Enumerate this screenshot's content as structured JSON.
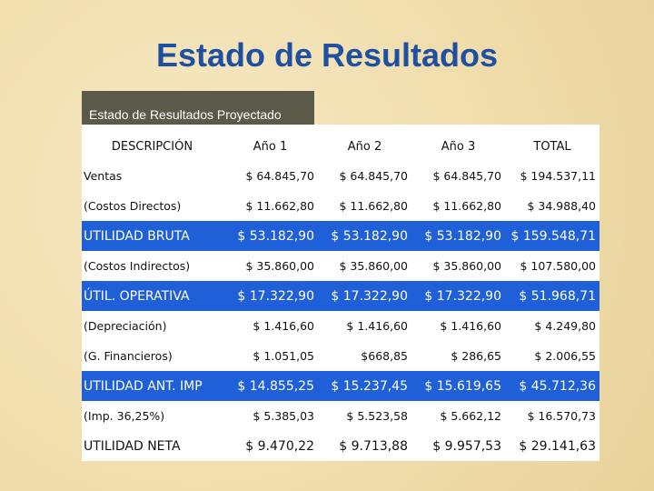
{
  "title": "Estado de Resultados",
  "table": {
    "caption": "Estado de Resultados Proyectado",
    "columns": [
      "DESCRIPCIÓN",
      "Año 1",
      "Año 2",
      "Año 3",
      "TOTAL"
    ],
    "rows": [
      {
        "cells": [
          "Ventas",
          "$ 64.845,70",
          "$ 64.845,70",
          "$ 64.845,70",
          "$ 194.537,11"
        ],
        "highlight": false
      },
      {
        "cells": [
          "(Costos Directos)",
          "$ 11.662,80",
          "$ 11.662,80",
          "$ 11.662,80",
          "$ 34.988,40"
        ],
        "highlight": false
      },
      {
        "cells": [
          "UTILIDAD BRUTA",
          "$ 53.182,90",
          "$ 53.182,90",
          "$ 53.182,90",
          "$ 159.548,71"
        ],
        "highlight": true
      },
      {
        "cells": [
          "(Costos Indirectos)",
          "$ 35.860,00",
          "$ 35.860,00",
          "$ 35.860,00",
          "$ 107.580,00"
        ],
        "highlight": false
      },
      {
        "cells": [
          "ÚTIL. OPERATIVA",
          "$ 17.322,90",
          "$ 17.322,90",
          "$ 17.322,90",
          "$ 51.968,71"
        ],
        "highlight": true
      },
      {
        "cells": [
          "(Depreciación)",
          "$ 1.416,60",
          "$ 1.416,60",
          "$ 1.416,60",
          "$ 4.249,80"
        ],
        "highlight": false
      },
      {
        "cells": [
          "(G. Financieros)",
          "$ 1.051,05",
          "$668,85",
          "$ 286,65",
          "$ 2.006,55"
        ],
        "highlight": false
      },
      {
        "cells": [
          "UTILIDAD ANT. IMP",
          "$ 14.855,25",
          "$ 15.237,45",
          "$ 15.619,65",
          "$ 45.712,36"
        ],
        "highlight": true
      },
      {
        "cells": [
          "(Imp. 36,25%)",
          "$ 5.385,03",
          "$ 5.523,58",
          "$ 5.662,12",
          "$ 16.570,73"
        ],
        "highlight": false
      },
      {
        "cells": [
          "UTILIDAD NETA",
          "$ 9.470,22",
          "$ 9.713,88",
          "$ 9.957,53",
          "$ 29.141,63"
        ],
        "highlight": false,
        "large": true
      }
    ]
  }
}
